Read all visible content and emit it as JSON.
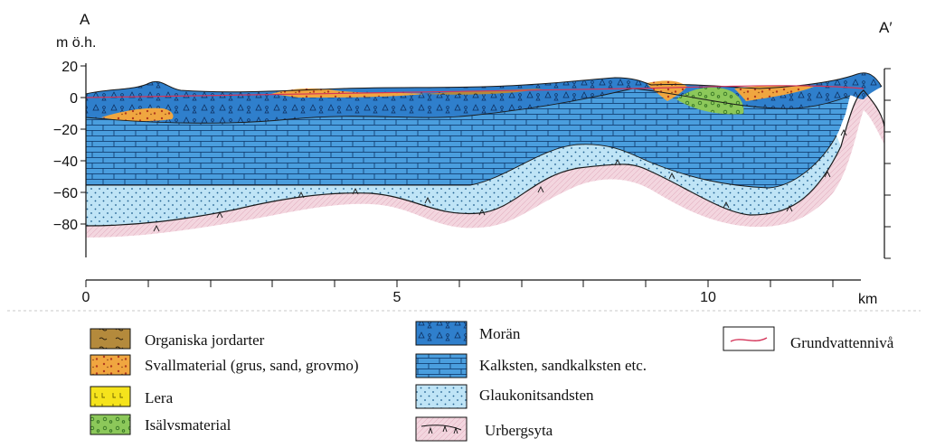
{
  "header": {
    "left_label": "A",
    "unit_label": "m ö.h.",
    "right_label": "A′"
  },
  "y_axis": {
    "ticks": [
      "20",
      "0",
      "−20",
      "−40",
      "−60",
      "−80"
    ]
  },
  "x_axis": {
    "ticks": [
      "0",
      "5",
      "10"
    ],
    "unit": "km"
  },
  "legend": {
    "left": [
      {
        "label": "Organiska jordarter",
        "swatch": "organic-soil",
        "color": "#b48a3c"
      },
      {
        "label": "Svallmaterial (grus, sand, grovmo)",
        "swatch": "wave-washed",
        "color": "#f0a640"
      },
      {
        "label": "Lera",
        "swatch": "clay",
        "color": "#f5e31c"
      },
      {
        "label": "Isälvsmaterial",
        "swatch": "glaciofluvial",
        "color": "#8cc85a"
      }
    ],
    "middle": [
      {
        "label": "Morän",
        "swatch": "till",
        "color": "#2f7fcc"
      },
      {
        "label": "Kalksten, sandkalksten etc.",
        "swatch": "limestone",
        "color": "#4a9ede"
      },
      {
        "label": "Glaukonitsandsten",
        "swatch": "sandstone",
        "color": "#bfe4f6"
      },
      {
        "label": "Urbergsyta",
        "swatch": "bedrock",
        "color": "#f3d6df"
      }
    ],
    "right": [
      {
        "label": "Grundvattennivå",
        "swatch": "groundwater",
        "color": "#d4355a"
      }
    ]
  },
  "colors": {
    "till": "#2f7fcc",
    "limestone": "#4a9ede",
    "sandstone": "#bfe4f6",
    "bedrock": "#f3d6df",
    "organic": "#b48a3c",
    "wave_washed": "#f0a640",
    "glaciofluvial": "#8cc85a",
    "groundwater": "#d4355a"
  }
}
